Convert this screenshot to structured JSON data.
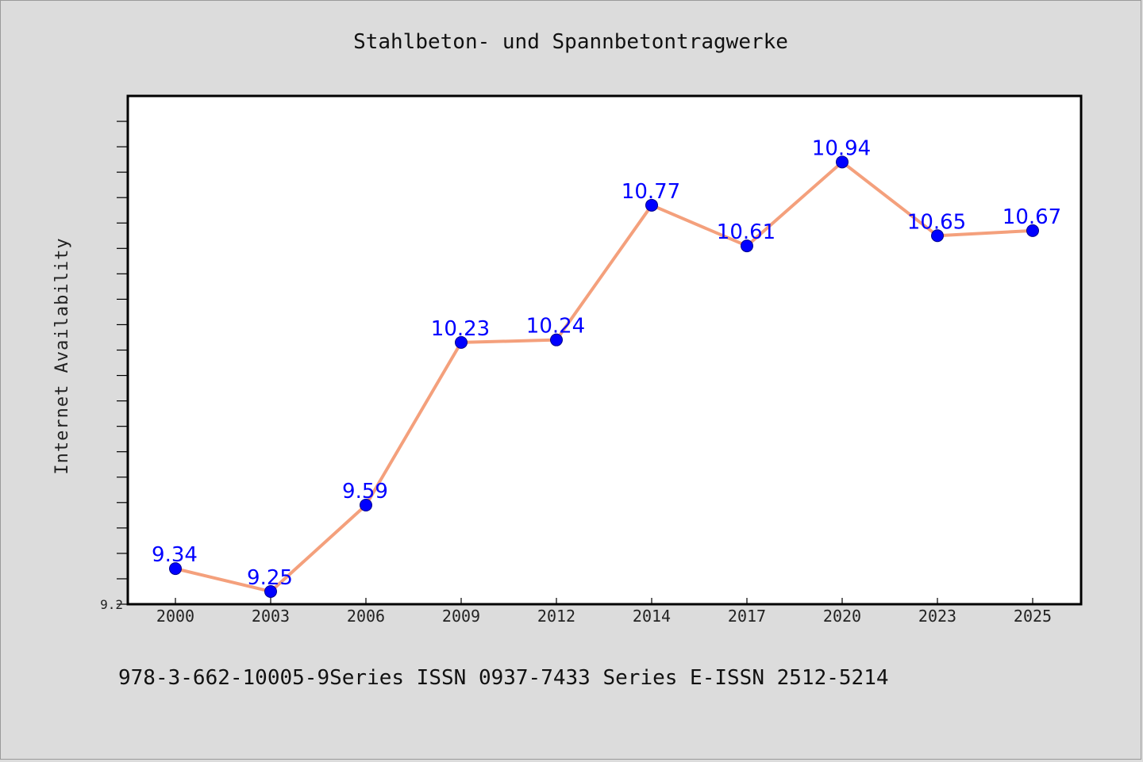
{
  "chart_data": {
    "type": "line",
    "title": "Stahlbeton- und Spannbetontragwerke",
    "xlabel": "",
    "ylabel": "Internet Availability",
    "categories": [
      "2000",
      "2003",
      "2006",
      "2009",
      "2012",
      "2014",
      "2017",
      "2020",
      "2023",
      "2025"
    ],
    "series": [
      {
        "values": [
          9.34,
          9.25,
          9.59,
          10.23,
          10.24,
          10.77,
          10.61,
          10.94,
          10.65,
          10.67
        ],
        "labels": [
          "9.34",
          "9.25",
          "9.59",
          "10.23",
          "10.24",
          "10.77",
          "10.61",
          "10.94",
          "10.65",
          "10.67"
        ],
        "line_color": "#f4a07c",
        "marker_color": "#0000ff"
      }
    ],
    "yticks_labeled": [
      "9.2"
    ],
    "ylim": [
      9.2,
      11.2
    ],
    "grid": false,
    "legend": "none"
  },
  "footer": {
    "text": "978-3-662-10005-9Series ISSN 0937-7433 Series E-ISSN 2512-5214"
  },
  "colors": {
    "background": "#dcdcdc",
    "plot_background": "#ffffff"
  }
}
